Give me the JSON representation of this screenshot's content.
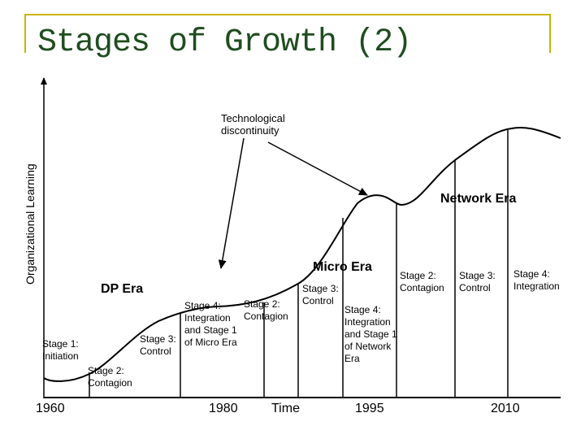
{
  "title": "Stages of Growth (2)",
  "y_axis_label": "Organizational Learning",
  "annotation": "Technological\ndiscontinuity",
  "eras": {
    "dp": "DP Era",
    "micro": "Micro Era",
    "network": "Network Era"
  },
  "stage_labels": {
    "dp_stage1": "Stage 1:\nInitiation",
    "dp_stage2": "Stage 2:\nContagion",
    "dp_stage3": "Stage 3:\nControl",
    "dp_stage4": "Stage 4:\nIntegration\nand Stage 1\nof Micro Era",
    "micro_stage2": "Stage 2:\nContagion",
    "micro_stage3": "Stage 3:\nControl",
    "micro_stage4": "Stage 4:\nIntegration\nand Stage 1\nof Network\nEra",
    "net_stage2": "Stage 2:\nContagion",
    "net_stage3": "Stage 3:\nControl",
    "net_stage4": "Stage 4:\nIntegration"
  },
  "x_labels": {
    "y1960": "1960",
    "y1980": "1980",
    "time": "Time",
    "y1995": "1995",
    "y2010": "2010"
  },
  "colors": {
    "frame": "#c8b400",
    "title": "#1f4d1f",
    "lines": "#000000"
  }
}
